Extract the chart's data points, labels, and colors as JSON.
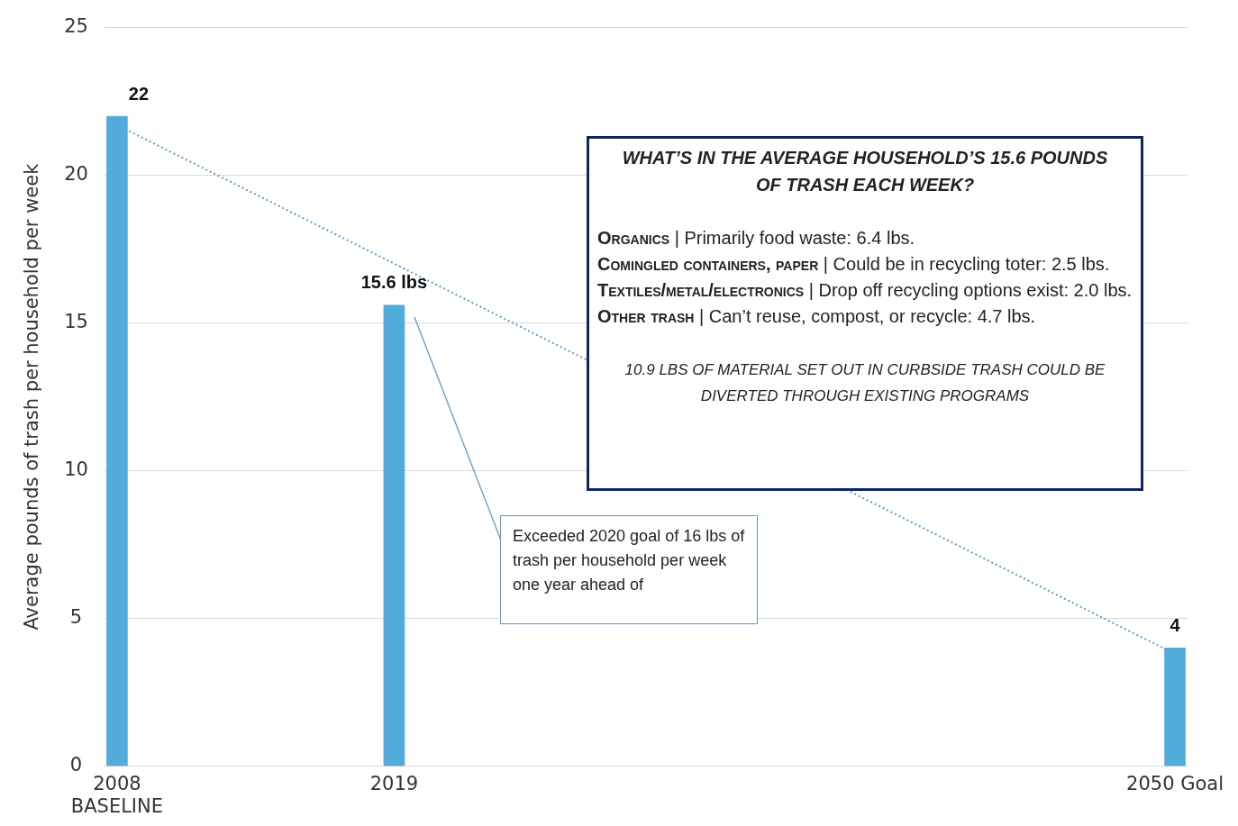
{
  "chart_data": {
    "type": "bar",
    "ylabel": "Average pounds of trash per household per week",
    "x": [
      2008,
      2019,
      2050
    ],
    "values": [
      22,
      15.6,
      4
    ],
    "color": "#52acdb",
    "value_labels": [
      "22",
      "15.6 lbs",
      "4"
    ],
    "series": [
      {
        "type": "line",
        "x": [
          2008,
          2050
        ],
        "values": [
          21.7,
          3.8
        ],
        "color": "#5b9bd5",
        "line_style": "dotted",
        "marker": "none"
      }
    ],
    "xlim": [
      2007.5,
      2050.5
    ],
    "xticks": [
      {
        "value": 2008,
        "label": "2008\nBASELINE"
      },
      2019,
      {
        "value": 2050,
        "label": "2050 Goal"
      }
    ],
    "ylim": [
      0,
      25
    ],
    "yticks": [
      0,
      5,
      10,
      15,
      20,
      25
    ],
    "grid": "y",
    "legend": false,
    "annotations": [
      "WHAT’S IN THE AVERAGE HOUSEHOLD’S 15.6 POUNDS OF TRASH EACH WEEK?",
      "Organics | Primarily food waste: 6.4 lbs.",
      "Comingled containers, paper | Could be in recycling toter: 2.5 lbs.",
      "Textiles/metal/electronics | Drop off recycling options exist: 2.0 lbs.",
      "Other trash | Can’t reuse, compost, or recycle: 4.7 lbs.",
      "10.9 LBS OF MATERIAL SET OUT IN CURBSIDE TRASH COULD BE DIVERTED THROUGH EXISTING PROGRAMS",
      "Exceeded 2020 goal of 16 lbs of trash per household per week one year ahead of"
    ]
  }
}
